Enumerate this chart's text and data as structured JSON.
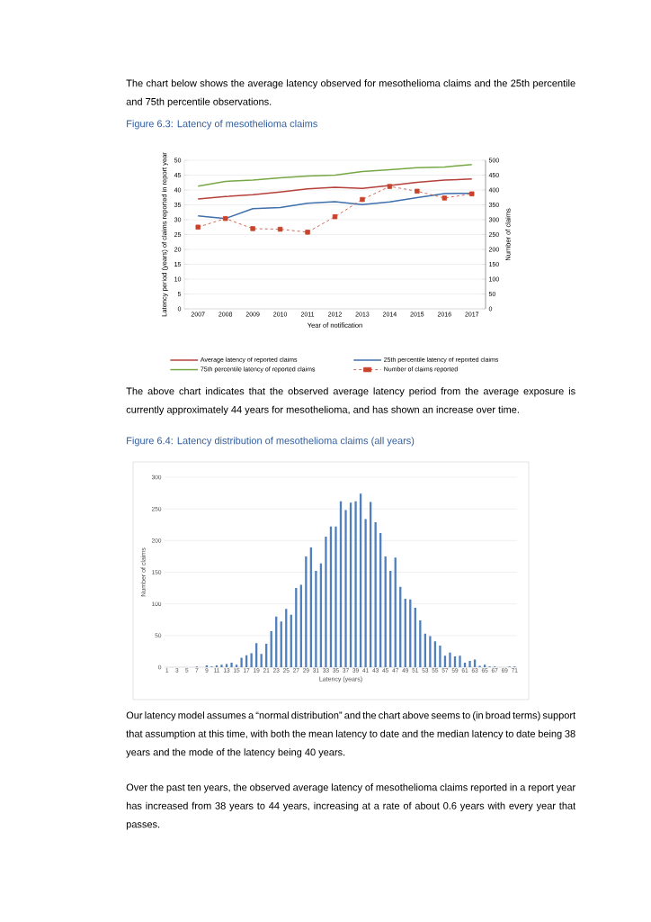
{
  "chart_data": [
    {
      "type": "line",
      "title": "Figure 6.3: Latency of mesothelioma claims",
      "xlabel": "Year of notification",
      "ylabel": "Latency period (years) of claims reported in report year",
      "y2label": "Number of claims",
      "categories": [
        "2007",
        "2008",
        "2009",
        "2010",
        "2011",
        "2012",
        "2013",
        "2014",
        "2015",
        "2016",
        "2017"
      ],
      "series": [
        {
          "name": "Average latency of reported claims",
          "color": "#b5403a",
          "values": [
            37.0,
            37.8,
            38.4,
            39.3,
            40.4,
            40.9,
            40.5,
            41.5,
            42.6,
            43.3,
            43.7
          ]
        },
        {
          "name": "25th percentile latency of reported claims",
          "color": "#3f6fad",
          "values": [
            31.3,
            30.4,
            33.7,
            34.1,
            35.5,
            36.1,
            35.1,
            36.0,
            37.4,
            38.8,
            38.9
          ]
        },
        {
          "name": "75th percentile latency of reported claims",
          "color": "#77a845",
          "values": [
            41.3,
            42.9,
            43.3,
            44.1,
            44.7,
            45.0,
            46.2,
            46.8,
            47.5,
            47.7,
            48.6
          ]
        },
        {
          "name": "Number of claims reported",
          "color": "#c8432b",
          "axis": "y2",
          "marker": "square",
          "line_style": "dashed",
          "values": [
            275,
            304,
            270,
            268,
            258,
            310,
            368,
            412,
            396,
            373,
            387
          ]
        }
      ],
      "ylim": [
        0,
        50
      ],
      "yticks": [
        0,
        5,
        10,
        15,
        20,
        25,
        30,
        35,
        40,
        45,
        50
      ],
      "y2lim": [
        0,
        500
      ],
      "y2ticks": [
        0,
        50,
        100,
        150,
        200,
        250,
        300,
        350,
        400,
        450,
        500
      ],
      "grid": "y",
      "legend": "bottom",
      "annotations": [
        "The chart below shows the average latency observed for mesothelioma claims and the 25th percentile and 75th percentile observations.",
        "The above chart indicates that the observed average latency period from the average exposure is currently approximately 44 years for mesothelioma, and has shown an increase over time."
      ]
    },
    {
      "type": "bar",
      "title": "Figure 6.4: Latency distribution of mesothelioma claims (all years)",
      "xlabel": "Latency (years)",
      "ylabel": "Number of claims",
      "categories": [
        "1",
        null,
        "3",
        null,
        "5",
        null,
        "7",
        null,
        "9",
        null,
        "11",
        null,
        "13",
        null,
        "15",
        null,
        "17",
        null,
        "19",
        null,
        "21",
        null,
        "23",
        null,
        "25",
        null,
        "27",
        null,
        "29",
        null,
        "31",
        null,
        "33",
        null,
        "35",
        null,
        "37",
        null,
        "39",
        null,
        "41",
        null,
        "43",
        null,
        "45",
        null,
        "47",
        null,
        "49",
        null,
        "51",
        null,
        "53",
        null,
        "55",
        null,
        "57",
        null,
        "59",
        null,
        "61",
        null,
        "63",
        null,
        "65",
        null,
        "67",
        null,
        "69",
        null,
        "71"
      ],
      "values": [
        0,
        0,
        0,
        0,
        0,
        0,
        1,
        0,
        3,
        1,
        3,
        4,
        5,
        7,
        4,
        15,
        19,
        22,
        38,
        21,
        37,
        57,
        80,
        72,
        92,
        83,
        125,
        130,
        175,
        189,
        152,
        164,
        206,
        222,
        222,
        262,
        248,
        260,
        262,
        274,
        234,
        261,
        229,
        212,
        175,
        152,
        173,
        127,
        108,
        107,
        94,
        74,
        53,
        49,
        41,
        34,
        18,
        23,
        17,
        18,
        7,
        10,
        12,
        2,
        4,
        1,
        1,
        0,
        0,
        1,
        1
      ],
      "color": "#4f7fbd",
      "ylim": [
        0,
        300
      ],
      "yticks": [
        0,
        50,
        100,
        150,
        200,
        250,
        300
      ],
      "grid": "y",
      "annotations": [
        "Our latency model assumes a “normal distribution” and the chart above seems to (in broad terms) support that assumption at this time, with both the mean latency to date and the median latency to date being 38 years and the mode of the latency being 40 years.",
        "Over the past ten years, the observed average latency of mesothelioma claims reported in a report year has increased from 38 years to 44 years, increasing at a rate of about 0.6 years with every year that passes."
      ]
    }
  ]
}
